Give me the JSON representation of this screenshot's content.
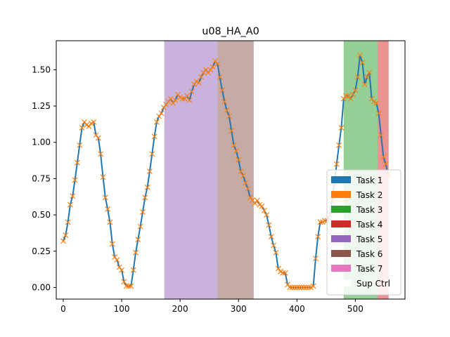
{
  "chart_data": {
    "type": "line",
    "title": "u08_HA_A0",
    "xlabel": "",
    "ylabel": "",
    "xlim": [
      -12,
      585
    ],
    "ylim": [
      -0.08,
      1.7
    ],
    "x_ticks": [
      0,
      100,
      200,
      300,
      400,
      500
    ],
    "y_ticks": [
      0.0,
      0.25,
      0.5,
      0.75,
      1.0,
      1.25,
      1.5
    ],
    "x_tick_labels": [
      "0",
      "100",
      "200",
      "300",
      "400",
      "500"
    ],
    "y_tick_labels": [
      "0.00",
      "0.25",
      "0.50",
      "0.75",
      "1.00",
      "1.25",
      "1.50"
    ],
    "grid": false,
    "legend_position": "lower-right",
    "bands": [
      {
        "label": "Task 5",
        "x0": 173,
        "x1": 264,
        "color": "#9467bd"
      },
      {
        "label": "Task 6",
        "x0": 264,
        "x1": 326,
        "color": "#8c564b"
      },
      {
        "label": "Task 3",
        "x0": 480,
        "x1": 538,
        "color": "#2ca02c"
      },
      {
        "label": "Task 4",
        "x0": 538,
        "x1": 557,
        "color": "#d62728"
      }
    ],
    "legend": [
      {
        "label": "Task 1",
        "color": "#1f77b4"
      },
      {
        "label": "Task 2",
        "color": "#ff7f0e"
      },
      {
        "label": "Task 3",
        "color": "#2ca02c"
      },
      {
        "label": "Task 4",
        "color": "#d62728"
      },
      {
        "label": "Task 5",
        "color": "#9467bd"
      },
      {
        "label": "Task 6",
        "color": "#8c564b"
      },
      {
        "label": "Task 7",
        "color": "#e377c2"
      },
      {
        "label": "Sup Ctrl",
        "color": "#ffffff"
      }
    ],
    "series": [
      {
        "line_color": "#1f77b4",
        "marker_color": "#ff7f0e",
        "x": [
          0,
          4,
          8,
          12,
          16,
          20,
          24,
          28,
          32,
          36,
          40,
          44,
          48,
          52,
          56,
          60,
          64,
          68,
          72,
          76,
          80,
          84,
          88,
          92,
          96,
          100,
          104,
          108,
          112,
          116,
          120,
          124,
          128,
          132,
          136,
          140,
          144,
          148,
          152,
          156,
          160,
          164,
          168,
          172,
          176,
          180,
          184,
          188,
          192,
          196,
          200,
          204,
          208,
          212,
          216,
          220,
          224,
          228,
          232,
          236,
          240,
          244,
          248,
          252,
          256,
          260,
          264,
          268,
          272,
          276,
          280,
          284,
          288,
          292,
          296,
          300,
          304,
          308,
          312,
          316,
          320,
          324,
          328,
          332,
          336,
          340,
          344,
          348,
          352,
          356,
          360,
          364,
          368,
          372,
          376,
          380,
          384,
          388,
          392,
          396,
          400,
          404,
          408,
          412,
          416,
          420,
          424,
          428,
          432,
          436,
          440,
          444,
          448,
          452,
          456,
          460,
          464,
          468,
          472,
          476,
          480,
          484,
          488,
          492,
          496,
          500,
          504,
          508,
          512,
          516,
          520,
          524,
          528,
          532,
          536,
          540,
          544,
          548,
          552,
          556
        ],
        "y": [
          0.32,
          0.36,
          0.45,
          0.57,
          0.63,
          0.74,
          0.86,
          0.98,
          1.1,
          1.14,
          1.12,
          1.11,
          1.13,
          1.14,
          1.05,
          1.03,
          0.92,
          0.76,
          0.62,
          0.54,
          0.45,
          0.3,
          0.21,
          0.19,
          0.14,
          0.12,
          0.04,
          0.01,
          0.01,
          0.01,
          0.12,
          0.24,
          0.33,
          0.42,
          0.52,
          0.62,
          0.69,
          0.8,
          0.92,
          1.04,
          1.14,
          1.18,
          1.2,
          1.24,
          1.26,
          1.28,
          1.3,
          1.27,
          1.29,
          1.33,
          1.31,
          1.3,
          1.3,
          1.32,
          1.29,
          1.35,
          1.4,
          1.42,
          1.41,
          1.45,
          1.48,
          1.5,
          1.48,
          1.5,
          1.52,
          1.56,
          1.54,
          1.45,
          1.36,
          1.28,
          1.22,
          1.18,
          1.08,
          0.98,
          0.94,
          0.88,
          0.8,
          0.77,
          0.72,
          0.68,
          0.62,
          0.6,
          0.58,
          0.6,
          0.57,
          0.56,
          0.53,
          0.5,
          0.43,
          0.35,
          0.29,
          0.24,
          0.13,
          0.11,
          0.1,
          0.1,
          0.02,
          0.0,
          0.0,
          0.0,
          0.0,
          0.0,
          0.0,
          0.0,
          0.0,
          0.0,
          0.0,
          0.01,
          0.2,
          0.35,
          0.45,
          0.45,
          0.46,
          0.46,
          0.5,
          0.6,
          0.72,
          0.85,
          0.98,
          1.1,
          1.3,
          1.32,
          1.32,
          1.3,
          1.33,
          1.36,
          1.45,
          1.6,
          1.55,
          1.4,
          1.45,
          1.48,
          1.3,
          1.28,
          1.27,
          1.2,
          1.05,
          0.9,
          0.85,
          0.78
        ]
      }
    ]
  }
}
